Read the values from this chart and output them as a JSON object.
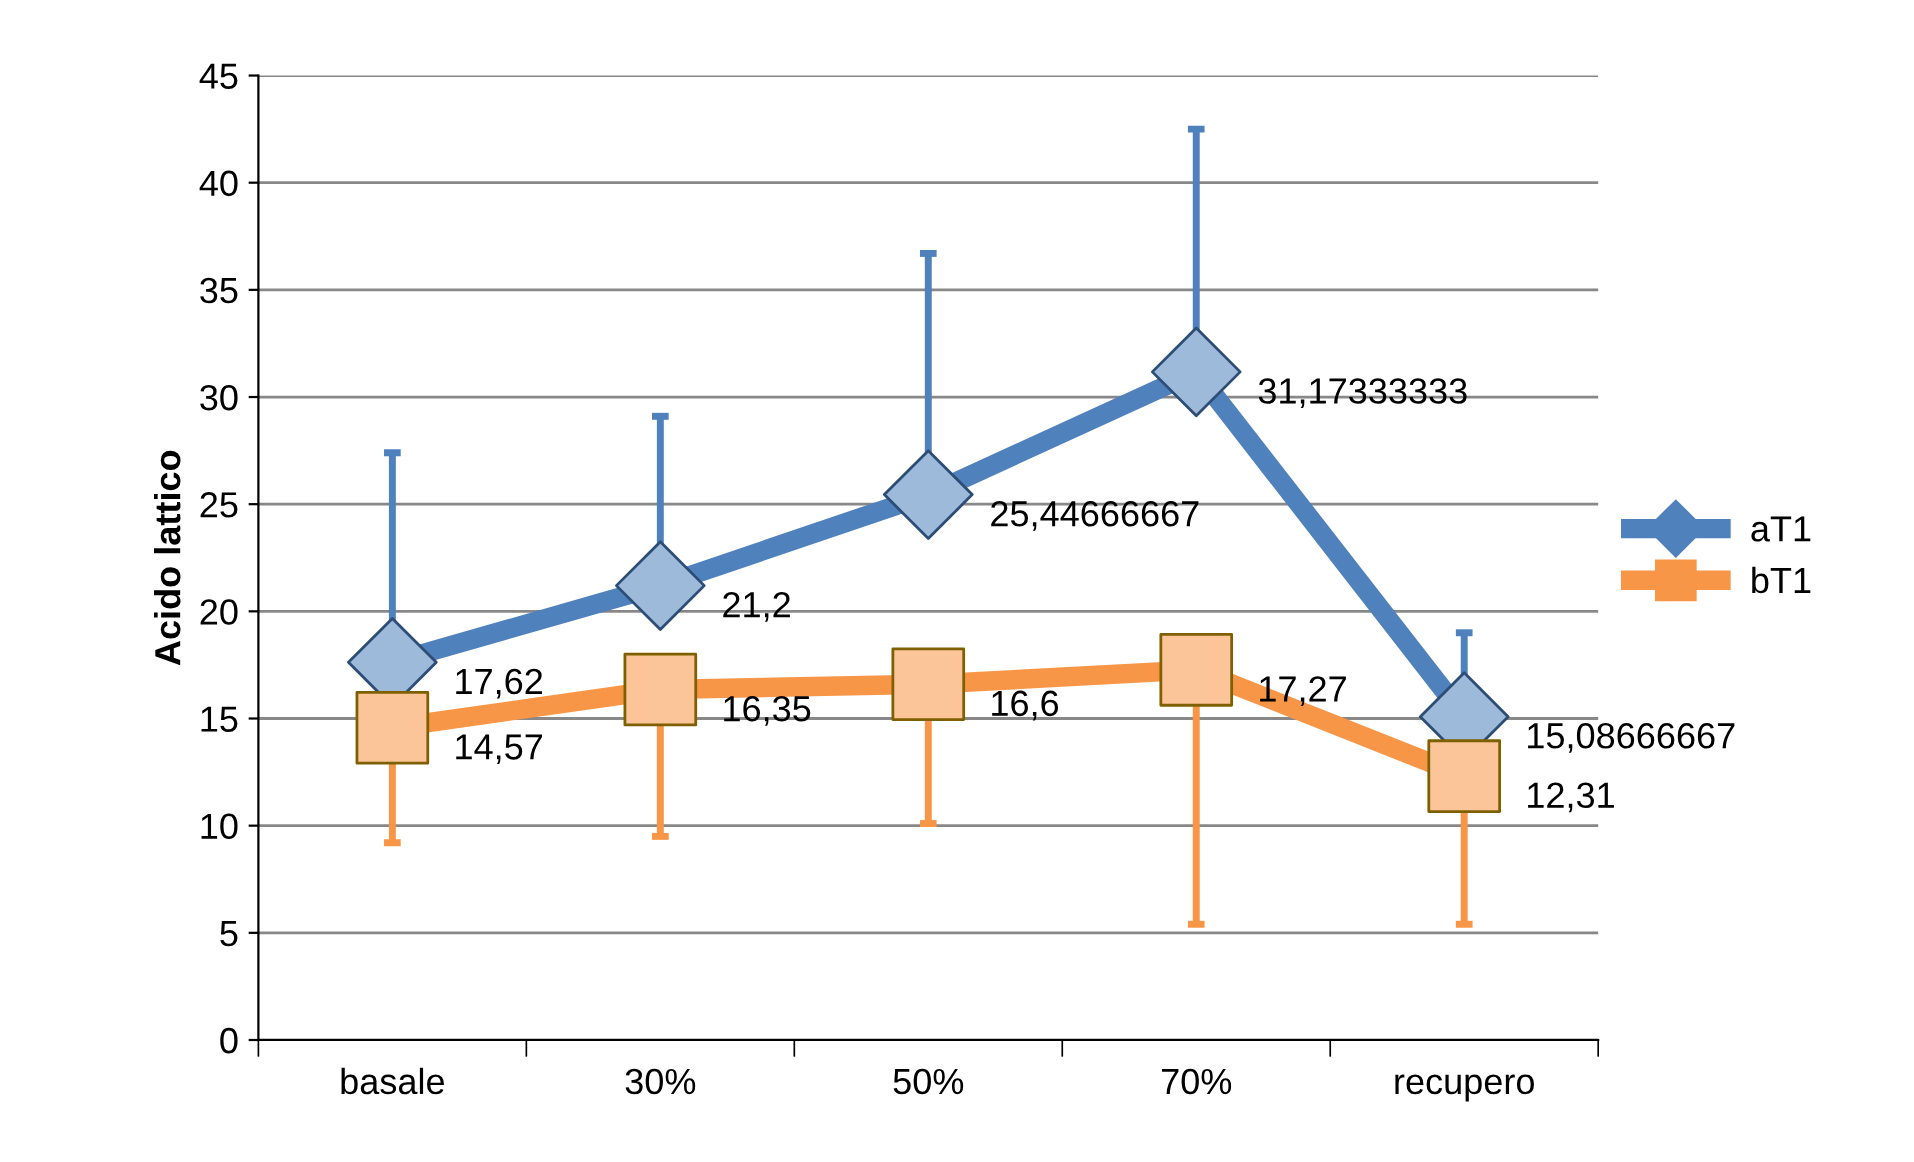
{
  "chart_data": {
    "type": "line",
    "ylabel": "Acido lattico",
    "categories": [
      "basale",
      "30%",
      "50%",
      "70%",
      "recupero"
    ],
    "ylim": [
      0,
      45
    ],
    "yticks": [
      0,
      5,
      10,
      15,
      20,
      25,
      30,
      35,
      40,
      45
    ],
    "grid": "y",
    "legend": "right",
    "series": [
      {
        "name": "aT1",
        "color": "#4f81bd",
        "marker": "diamond",
        "values": [
          17.62,
          21.2,
          25.44666667,
          31.17333333,
          15.08666667
        ],
        "value_labels": [
          "17,62",
          "21,2",
          "25,44666667",
          "31,17333333",
          "15,08666667"
        ],
        "errors": [
          [
            17.62,
            27.4
          ],
          [
            21.2,
            29.1
          ],
          [
            25.44666667,
            36.7
          ],
          [
            31.17333333,
            42.5
          ],
          [
            15.08666667,
            19.0
          ]
        ]
      },
      {
        "name": "bT1",
        "color": "#f79646",
        "marker": "square",
        "values": [
          14.57,
          16.35,
          16.6,
          17.27,
          12.31
        ],
        "value_labels": [
          "14,57",
          "16,35",
          "16,6",
          "17,27",
          "12,31"
        ],
        "errors": [
          [
            9.2,
            14.57
          ],
          [
            9.5,
            16.35
          ],
          [
            10.1,
            16.6
          ],
          [
            5.4,
            17.27
          ],
          [
            5.4,
            12.31
          ]
        ]
      }
    ]
  }
}
